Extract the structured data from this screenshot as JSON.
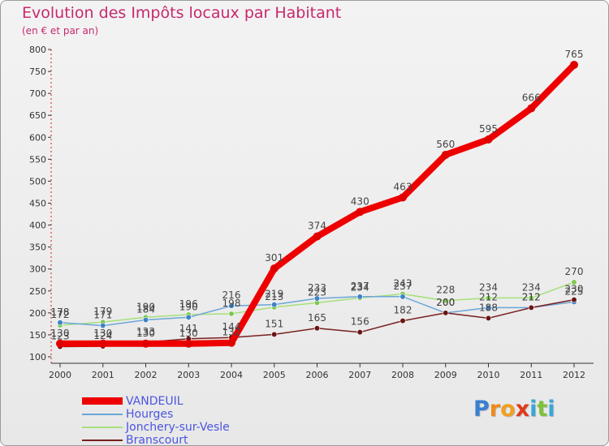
{
  "chart_data": {
    "type": "line",
    "title": "Evolution des Impôts locaux par Habitant",
    "subtitle": "(en € et par an)",
    "x": [
      "2000",
      "2001",
      "2002",
      "2003",
      "2004",
      "2005",
      "2006",
      "2007",
      "2008",
      "2009",
      "2010",
      "2011",
      "2012"
    ],
    "ylim": [
      100,
      800
    ],
    "yticks": [
      100,
      150,
      200,
      250,
      300,
      350,
      400,
      450,
      500,
      550,
      600,
      650,
      700,
      750,
      800
    ],
    "grid": false,
    "series": [
      {
        "name": "Jonchery-sur-Vesle",
        "color": "#a6e07a",
        "marker": "#7ec850",
        "width": 1.5,
        "values": [
          172,
          179,
          190,
          196,
          198,
          213,
          223,
          234,
          243,
          228,
          234,
          234,
          270
        ]
      },
      {
        "name": "Hourges",
        "color": "#6aa6d8",
        "marker": "#3f82c6",
        "width": 1.5,
        "values": [
          178,
          171,
          184,
          190,
          216,
          219,
          233,
          237,
          237,
          200,
          212,
          212,
          225
        ]
      },
      {
        "name": "Branscourt",
        "color": "#7a1f1f",
        "marker": "#6b1515",
        "width": 1.5,
        "values": [
          123,
          124,
          133,
          141,
          144,
          151,
          165,
          156,
          182,
          200,
          188,
          212,
          230
        ]
      },
      {
        "name": "VANDEUIL",
        "color": "#ee0000",
        "marker": "#e00000",
        "width": 8,
        "values": [
          130,
          130,
          130,
          130,
          132,
          301,
          374,
          430,
          463,
          560,
          595,
          666,
          765
        ]
      }
    ],
    "labels": [
      {
        "text": "172",
        "x": "2000",
        "y": 172
      },
      {
        "text": "178",
        "x": "2000",
        "y": 178
      },
      {
        "text": "123",
        "x": "2000",
        "y": 123
      },
      {
        "text": "130",
        "x": "2000",
        "y": 130
      },
      {
        "text": "179",
        "x": "2001",
        "y": 179
      },
      {
        "text": "171",
        "x": "2001",
        "y": 171
      },
      {
        "text": "124",
        "x": "2001",
        "y": 124
      },
      {
        "text": "130",
        "x": "2001",
        "y": 130
      },
      {
        "text": "190",
        "x": "2002",
        "y": 190
      },
      {
        "text": "184",
        "x": "2002",
        "y": 184
      },
      {
        "text": "133",
        "x": "2002",
        "y": 133
      },
      {
        "text": "130",
        "x": "2002",
        "y": 130
      },
      {
        "text": "196",
        "x": "2003",
        "y": 196
      },
      {
        "text": "190",
        "x": "2003",
        "y": 190
      },
      {
        "text": "141",
        "x": "2003",
        "y": 141
      },
      {
        "text": "130",
        "x": "2003",
        "y": 130
      },
      {
        "text": "216",
        "x": "2004",
        "y": 216
      },
      {
        "text": "198",
        "x": "2004",
        "y": 198
      },
      {
        "text": "144",
        "x": "2004",
        "y": 144
      },
      {
        "text": "132",
        "x": "2004",
        "y": 132
      },
      {
        "text": "301",
        "x": "2005",
        "y": 301
      },
      {
        "text": "219",
        "x": "2005",
        "y": 219
      },
      {
        "text": "213",
        "x": "2005",
        "y": 213
      },
      {
        "text": "151",
        "x": "2005",
        "y": 151
      },
      {
        "text": "374",
        "x": "2006",
        "y": 374
      },
      {
        "text": "233",
        "x": "2006",
        "y": 233
      },
      {
        "text": "223",
        "x": "2006",
        "y": 223
      },
      {
        "text": "165",
        "x": "2006",
        "y": 165
      },
      {
        "text": "430",
        "x": "2007",
        "y": 430
      },
      {
        "text": "237",
        "x": "2007",
        "y": 237
      },
      {
        "text": "234",
        "x": "2007",
        "y": 234
      },
      {
        "text": "156",
        "x": "2007",
        "y": 156
      },
      {
        "text": "463",
        "x": "2008",
        "y": 463
      },
      {
        "text": "243",
        "x": "2008",
        "y": 243
      },
      {
        "text": "237",
        "x": "2008",
        "y": 237
      },
      {
        "text": "182",
        "x": "2008",
        "y": 182
      },
      {
        "text": "560",
        "x": "2009",
        "y": 560
      },
      {
        "text": "228",
        "x": "2009",
        "y": 228
      },
      {
        "text": "200",
        "x": "2009",
        "y": 200
      },
      {
        "text": "200",
        "x": "2009",
        "y": 200
      },
      {
        "text": "595",
        "x": "2010",
        "y": 595
      },
      {
        "text": "234",
        "x": "2010",
        "y": 234
      },
      {
        "text": "212",
        "x": "2010",
        "y": 212
      },
      {
        "text": "188",
        "x": "2010",
        "y": 188
      },
      {
        "text": "666",
        "x": "2011",
        "y": 666
      },
      {
        "text": "234",
        "x": "2011",
        "y": 234
      },
      {
        "text": "212",
        "x": "2011",
        "y": 212
      },
      {
        "text": "212",
        "x": "2011",
        "y": 212
      },
      {
        "text": "765",
        "x": "2012",
        "y": 765
      },
      {
        "text": "270",
        "x": "2012",
        "y": 270
      },
      {
        "text": "230",
        "x": "2012",
        "y": 230
      },
      {
        "text": "225",
        "x": "2012",
        "y": 225
      }
    ]
  },
  "legend": [
    {
      "name": "VANDEUIL",
      "color": "#ee0000",
      "thickness": "thick"
    },
    {
      "name": "Hourges",
      "color": "#6aa6d8",
      "thickness": "thin"
    },
    {
      "name": "Jonchery-sur-Vesle",
      "color": "#a6e07a",
      "thickness": "thin"
    },
    {
      "name": "Branscourt",
      "color": "#7a1f1f",
      "thickness": "thin"
    }
  ],
  "logo": {
    "letters": [
      "P",
      "r",
      "o",
      "x",
      "i",
      "t",
      "i"
    ],
    "colors": [
      "#3a7fd0",
      "#f08a1a",
      "#f0a020",
      "#e03a1a",
      "#3aa6d8",
      "#7cc23a",
      "#3aa6d8"
    ]
  }
}
